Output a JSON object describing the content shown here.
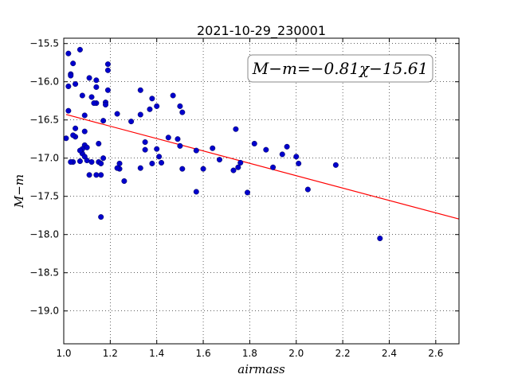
{
  "chart_data": {
    "type": "scatter",
    "title": "2021-10-29_230001",
    "xlabel": "airmass",
    "ylabel": "M−m",
    "xlim": [
      1.0,
      2.7
    ],
    "ylim": [
      -19.43,
      -15.43
    ],
    "y_inverted": true,
    "grid": true,
    "x_ticks": [
      1.0,
      1.2,
      1.4,
      1.6,
      1.8,
      2.0,
      2.2,
      2.4,
      2.6
    ],
    "x_tick_labels": [
      "1.0",
      "1.2",
      "1.4",
      "1.6",
      "1.8",
      "2.0",
      "2.2",
      "2.4",
      "2.6"
    ],
    "y_ticks": [
      -15.5,
      -16.0,
      -16.5,
      -17.0,
      -17.5,
      -18.0,
      -18.5,
      -19.0
    ],
    "y_tick_labels": [
      "−15.5",
      "−16.0",
      "−16.5",
      "−17.0",
      "−17.5",
      "−18.0",
      "−18.5",
      "−19.0"
    ],
    "annotation": "M−m=−0.81χ−15.61",
    "fit": {
      "slope": -0.81,
      "intercept": -15.61,
      "color": "#ff0000"
    },
    "point_color": "#0000cc",
    "series": [
      {
        "x": [
          1.02,
          1.03,
          1.07,
          1.04,
          1.03,
          1.05,
          1.05,
          1.02,
          1.08,
          1.11,
          1.14,
          1.19,
          1.19,
          1.18,
          1.13,
          1.14,
          1.12,
          1.17,
          1.18,
          1.09,
          1.14,
          1.05,
          1.02,
          1.04,
          1.09,
          1.17,
          1.15,
          1.03,
          1.01,
          1.08,
          1.09,
          1.1,
          1.09,
          1.07,
          1.08,
          1.1,
          1.04,
          1.07,
          1.12,
          1.11,
          1.16,
          1.16,
          1.15,
          1.14,
          1.19,
          1.23,
          1.24,
          1.24,
          1.26,
          1.23,
          1.29,
          1.33,
          1.33,
          1.35,
          1.35,
          1.37,
          1.38,
          1.4,
          1.38,
          1.4,
          1.41,
          1.42,
          1.45,
          1.47,
          1.5,
          1.5,
          1.51,
          1.49,
          1.51,
          1.57,
          1.57,
          1.6,
          1.64,
          1.67,
          1.74,
          1.73,
          1.75,
          1.76,
          1.79,
          1.82,
          1.87,
          1.9,
          1.94,
          1.96,
          2.0,
          2.01,
          2.05,
          2.17,
          1.16,
          2.36,
          1.33
        ],
        "y": [
          -15.63,
          -15.9,
          -15.58,
          -15.76,
          -15.92,
          -16.03,
          -16.72,
          -16.06,
          -16.18,
          -15.95,
          -16.28,
          -15.77,
          -15.85,
          -16.27,
          -16.28,
          -15.98,
          -16.2,
          -16.51,
          -16.3,
          -16.44,
          -16.07,
          -16.61,
          -16.38,
          -17.05,
          -16.65,
          -17.0,
          -17.05,
          -17.05,
          -16.74,
          -16.94,
          -16.83,
          -16.86,
          -16.98,
          -17.04,
          -16.88,
          -17.03,
          -16.7,
          -16.9,
          -17.05,
          -17.22,
          -17.07,
          -17.22,
          -16.81,
          -17.22,
          -16.11,
          -16.42,
          -17.07,
          -17.14,
          -17.3,
          -17.13,
          -16.52,
          -16.11,
          -16.43,
          -16.79,
          -16.89,
          -16.36,
          -16.22,
          -16.32,
          -17.07,
          -16.88,
          -16.98,
          -17.06,
          -16.73,
          -16.18,
          -16.32,
          -16.84,
          -16.4,
          -16.75,
          -17.14,
          -16.9,
          -17.44,
          -17.14,
          -16.87,
          -17.02,
          -16.62,
          -17.16,
          -17.12,
          -17.06,
          -17.45,
          -16.81,
          -16.89,
          -17.12,
          -16.95,
          -16.85,
          -16.98,
          -17.07,
          -17.41,
          -17.09,
          -17.77,
          -18.05,
          -17.13
        ]
      }
    ]
  }
}
